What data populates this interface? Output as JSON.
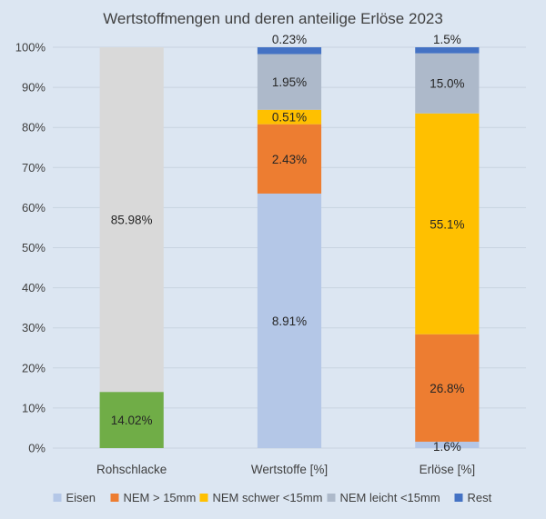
{
  "chart_data": {
    "type": "bar",
    "stacked": true,
    "percent_stacked": true,
    "title": "Wertstoffmengen und deren anteilige Erlöse 2023",
    "xlabel": "",
    "ylabel": "",
    "ylim": [
      0,
      100
    ],
    "y_tick_labels": [
      "0%",
      "10%",
      "20%",
      "30%",
      "40%",
      "50%",
      "60%",
      "70%",
      "80%",
      "90%",
      "100%"
    ],
    "grid": true,
    "legend_position": "bottom",
    "categories": [
      "Rohschlacke",
      "Wertstoffe [%]",
      "Erlöse [%]"
    ],
    "series": [
      {
        "name": "",
        "color": "#70ad47",
        "values": [
          14.02,
          null,
          null
        ],
        "labels": [
          "14.02%",
          "",
          ""
        ]
      },
      {
        "name": "",
        "color": "#d9d9d9",
        "values": [
          85.98,
          null,
          null
        ],
        "labels": [
          "85.98%",
          "",
          ""
        ]
      },
      {
        "name": "Eisen",
        "color": "#b4c7e7",
        "values": [
          null,
          63.5,
          1.6
        ],
        "labels": [
          "",
          "8.91%",
          "1.6%"
        ]
      },
      {
        "name": "NEM > 15mm",
        "color": "#ed7d31",
        "values": [
          null,
          17.3,
          26.8
        ],
        "labels": [
          "",
          "2.43%",
          "26.8%"
        ]
      },
      {
        "name": "NEM schwer <15mm",
        "color": "#ffc000",
        "values": [
          null,
          3.6,
          55.1
        ],
        "labels": [
          "",
          "0.51%",
          "55.1%"
        ]
      },
      {
        "name": "NEM leicht <15mm",
        "color": "#adb9ca",
        "values": [
          null,
          13.9,
          15.0
        ],
        "labels": [
          "",
          "1.95%",
          "15.0%"
        ]
      },
      {
        "name": "Rest",
        "color": "#4472c4",
        "values": [
          null,
          1.7,
          1.5
        ],
        "labels": [
          "",
          "0.23%",
          "1.5%"
        ]
      }
    ]
  }
}
